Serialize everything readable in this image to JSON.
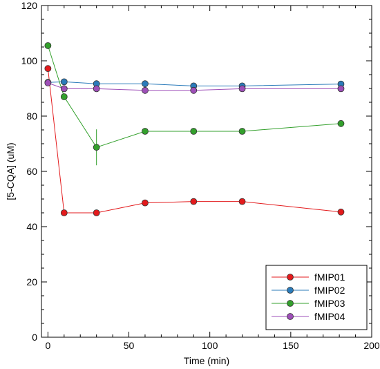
{
  "chart_data": {
    "type": "line",
    "title": "",
    "xlabel": "Time (min)",
    "ylabel": "[5-CQA] (uM)",
    "xlim": [
      -4,
      200
    ],
    "ylim": [
      0,
      120
    ],
    "xticks": [
      "0",
      "50",
      "100",
      "150",
      "200"
    ],
    "yticks": [
      "0",
      "20",
      "40",
      "60",
      "80",
      "100",
      "120"
    ],
    "grid": false,
    "legend_position": "bottom-right",
    "series": [
      {
        "name": "fMIP01",
        "color": "#e31a1c",
        "x": [
          0,
          10,
          30,
          60,
          90,
          120,
          181
        ],
        "y": [
          97.2,
          45.0,
          45.0,
          48.6,
          49.1,
          49.1,
          45.3
        ],
        "err": [
          0,
          0,
          0,
          0,
          0,
          0,
          0
        ]
      },
      {
        "name": "fMIP02",
        "color": "#2b7bba",
        "x": [
          0,
          10,
          30,
          60,
          90,
          120,
          181
        ],
        "y": [
          92.2,
          92.4,
          91.7,
          91.7,
          90.9,
          90.9,
          91.6
        ],
        "err": [
          0,
          0,
          0,
          0,
          0,
          0,
          0
        ]
      },
      {
        "name": "fMIP03",
        "color": "#33a02c",
        "x": [
          0,
          10,
          30,
          60,
          90,
          120,
          181
        ],
        "y": [
          105.5,
          87.0,
          68.7,
          74.5,
          74.5,
          74.5,
          77.3
        ],
        "err": [
          0,
          0,
          6.5,
          0,
          0,
          0,
          0
        ]
      },
      {
        "name": "fMIP04",
        "color": "#9e4fb8",
        "x": [
          0,
          10,
          30,
          60,
          90,
          120,
          181
        ],
        "y": [
          92.0,
          89.9,
          89.9,
          89.3,
          89.3,
          89.9,
          89.9
        ],
        "err": [
          0,
          0,
          0,
          0,
          0,
          0,
          0
        ]
      }
    ]
  }
}
